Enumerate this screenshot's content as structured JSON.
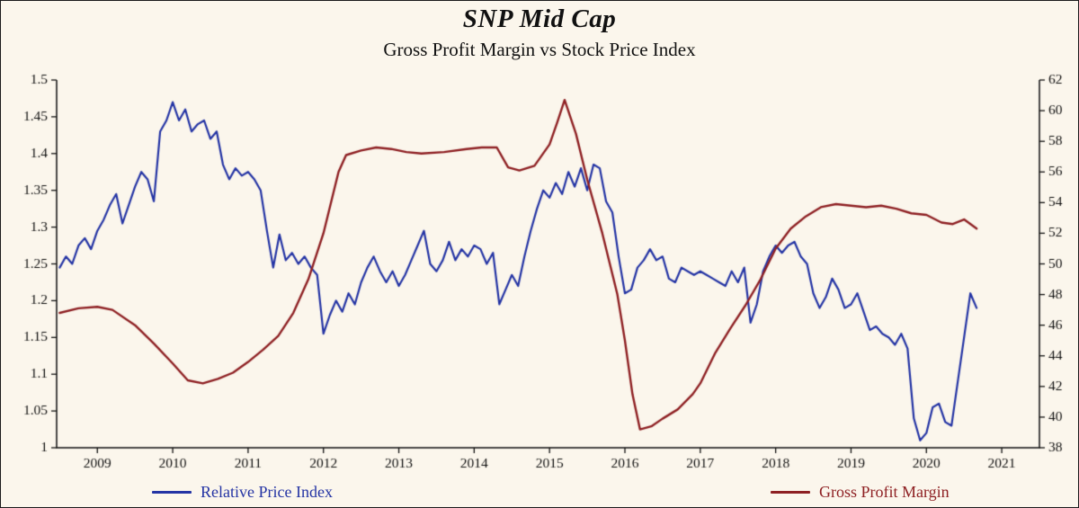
{
  "page": {
    "title": "SNP Mid Cap",
    "subtitle": "Gross Profit Margin vs Stock Price Index"
  },
  "chart_data": {
    "type": "line",
    "title": "SNP Mid Cap",
    "subtitle": "Gross Profit Margin vs Stock Price Index",
    "background_color": "#fbf6ec",
    "axis_color": "#111111",
    "grid": false,
    "legend_position": "bottom",
    "layout": {
      "plot_left": 62,
      "plot_right": 1155,
      "plot_top": 13,
      "plot_bottom": 422
    },
    "x_axis": {
      "min": 2008.46,
      "max": 2021.5,
      "ticks": [
        2009,
        2010,
        2011,
        2012,
        2013,
        2014,
        2015,
        2016,
        2017,
        2018,
        2019,
        2020,
        2021
      ]
    },
    "left_axis": {
      "label": "Relative Price Index",
      "min": 1.0,
      "max": 1.5,
      "ticks": [
        1.0,
        1.05,
        1.1,
        1.15,
        1.2,
        1.25,
        1.3,
        1.35,
        1.4,
        1.45,
        1.5
      ],
      "labels": [
        "1",
        "1.05",
        "1.1",
        "1.15",
        "1.2",
        "1.25",
        "1.3",
        "1.35",
        "1.4",
        "1.45",
        "1.5"
      ]
    },
    "right_axis": {
      "label": "Gross Profit Margin",
      "min": 38,
      "max": 62,
      "ticks": [
        38,
        40,
        42,
        44,
        46,
        48,
        50,
        52,
        54,
        56,
        58,
        60,
        62
      ],
      "labels": [
        "38",
        "40",
        "42",
        "44",
        "46",
        "48",
        "50",
        "52",
        "54",
        "56",
        "58",
        "60",
        "62"
      ]
    },
    "series": [
      {
        "name": "Relative Price Index",
        "axis": "left",
        "color": "#2434a4",
        "width": 2.2,
        "x_start": 2008.5,
        "x_step": 0.083333,
        "values": [
          1.245,
          1.26,
          1.25,
          1.275,
          1.285,
          1.27,
          1.295,
          1.31,
          1.33,
          1.345,
          1.305,
          1.33,
          1.355,
          1.375,
          1.365,
          1.335,
          1.43,
          1.445,
          1.47,
          1.445,
          1.46,
          1.43,
          1.44,
          1.445,
          1.42,
          1.43,
          1.385,
          1.365,
          1.38,
          1.37,
          1.375,
          1.365,
          1.35,
          1.295,
          1.245,
          1.29,
          1.255,
          1.265,
          1.25,
          1.26,
          1.245,
          1.235,
          1.155,
          1.18,
          1.2,
          1.185,
          1.21,
          1.195,
          1.225,
          1.245,
          1.26,
          1.24,
          1.225,
          1.24,
          1.22,
          1.235,
          1.255,
          1.275,
          1.295,
          1.25,
          1.24,
          1.255,
          1.28,
          1.255,
          1.27,
          1.26,
          1.275,
          1.27,
          1.25,
          1.265,
          1.195,
          1.215,
          1.235,
          1.22,
          1.26,
          1.295,
          1.325,
          1.35,
          1.34,
          1.36,
          1.345,
          1.375,
          1.355,
          1.38,
          1.35,
          1.385,
          1.38,
          1.335,
          1.32,
          1.26,
          1.21,
          1.215,
          1.245,
          1.255,
          1.27,
          1.255,
          1.26,
          1.23,
          1.225,
          1.245,
          1.24,
          1.235,
          1.24,
          1.235,
          1.23,
          1.225,
          1.22,
          1.24,
          1.225,
          1.245,
          1.17,
          1.195,
          1.24,
          1.26,
          1.275,
          1.265,
          1.275,
          1.28,
          1.26,
          1.25,
          1.21,
          1.19,
          1.205,
          1.23,
          1.215,
          1.19,
          1.195,
          1.21,
          1.185,
          1.16,
          1.165,
          1.155,
          1.15,
          1.14,
          1.155,
          1.135,
          1.04,
          1.01,
          1.02,
          1.055,
          1.06,
          1.035,
          1.03,
          1.09,
          1.15,
          1.21,
          1.19
        ]
      },
      {
        "name": "Gross Profit Margin",
        "axis": "right",
        "color": "#8e2023",
        "width": 2.4,
        "points": [
          [
            2008.5,
            46.8
          ],
          [
            2008.75,
            47.1
          ],
          [
            2009.0,
            47.2
          ],
          [
            2009.2,
            47.0
          ],
          [
            2009.5,
            46.0
          ],
          [
            2009.75,
            44.8
          ],
          [
            2010.0,
            43.5
          ],
          [
            2010.2,
            42.4
          ],
          [
            2010.4,
            42.2
          ],
          [
            2010.6,
            42.5
          ],
          [
            2010.8,
            42.9
          ],
          [
            2011.0,
            43.6
          ],
          [
            2011.2,
            44.4
          ],
          [
            2011.4,
            45.3
          ],
          [
            2011.6,
            46.8
          ],
          [
            2011.8,
            49.0
          ],
          [
            2012.0,
            52.0
          ],
          [
            2012.2,
            56.0
          ],
          [
            2012.3,
            57.1
          ],
          [
            2012.5,
            57.4
          ],
          [
            2012.7,
            57.6
          ],
          [
            2012.9,
            57.5
          ],
          [
            2013.1,
            57.3
          ],
          [
            2013.3,
            57.2
          ],
          [
            2013.6,
            57.3
          ],
          [
            2013.9,
            57.5
          ],
          [
            2014.1,
            57.6
          ],
          [
            2014.3,
            57.6
          ],
          [
            2014.45,
            56.3
          ],
          [
            2014.6,
            56.1
          ],
          [
            2014.8,
            56.4
          ],
          [
            2015.0,
            57.8
          ],
          [
            2015.1,
            59.2
          ],
          [
            2015.2,
            60.7
          ],
          [
            2015.35,
            58.5
          ],
          [
            2015.5,
            55.5
          ],
          [
            2015.7,
            52.0
          ],
          [
            2015.9,
            48.0
          ],
          [
            2016.0,
            45.0
          ],
          [
            2016.1,
            41.5
          ],
          [
            2016.2,
            39.2
          ],
          [
            2016.35,
            39.4
          ],
          [
            2016.5,
            39.9
          ],
          [
            2016.7,
            40.5
          ],
          [
            2016.9,
            41.5
          ],
          [
            2017.0,
            42.2
          ],
          [
            2017.2,
            44.2
          ],
          [
            2017.4,
            45.8
          ],
          [
            2017.6,
            47.3
          ],
          [
            2017.8,
            49.0
          ],
          [
            2018.0,
            51.0
          ],
          [
            2018.2,
            52.3
          ],
          [
            2018.4,
            53.1
          ],
          [
            2018.6,
            53.7
          ],
          [
            2018.8,
            53.9
          ],
          [
            2019.0,
            53.8
          ],
          [
            2019.2,
            53.7
          ],
          [
            2019.4,
            53.8
          ],
          [
            2019.6,
            53.6
          ],
          [
            2019.8,
            53.3
          ],
          [
            2020.0,
            53.2
          ],
          [
            2020.2,
            52.7
          ],
          [
            2020.35,
            52.6
          ],
          [
            2020.5,
            52.9
          ],
          [
            2020.667,
            52.3
          ]
        ]
      }
    ],
    "legend": [
      "Relative Price Index",
      "Gross Profit Margin"
    ]
  }
}
